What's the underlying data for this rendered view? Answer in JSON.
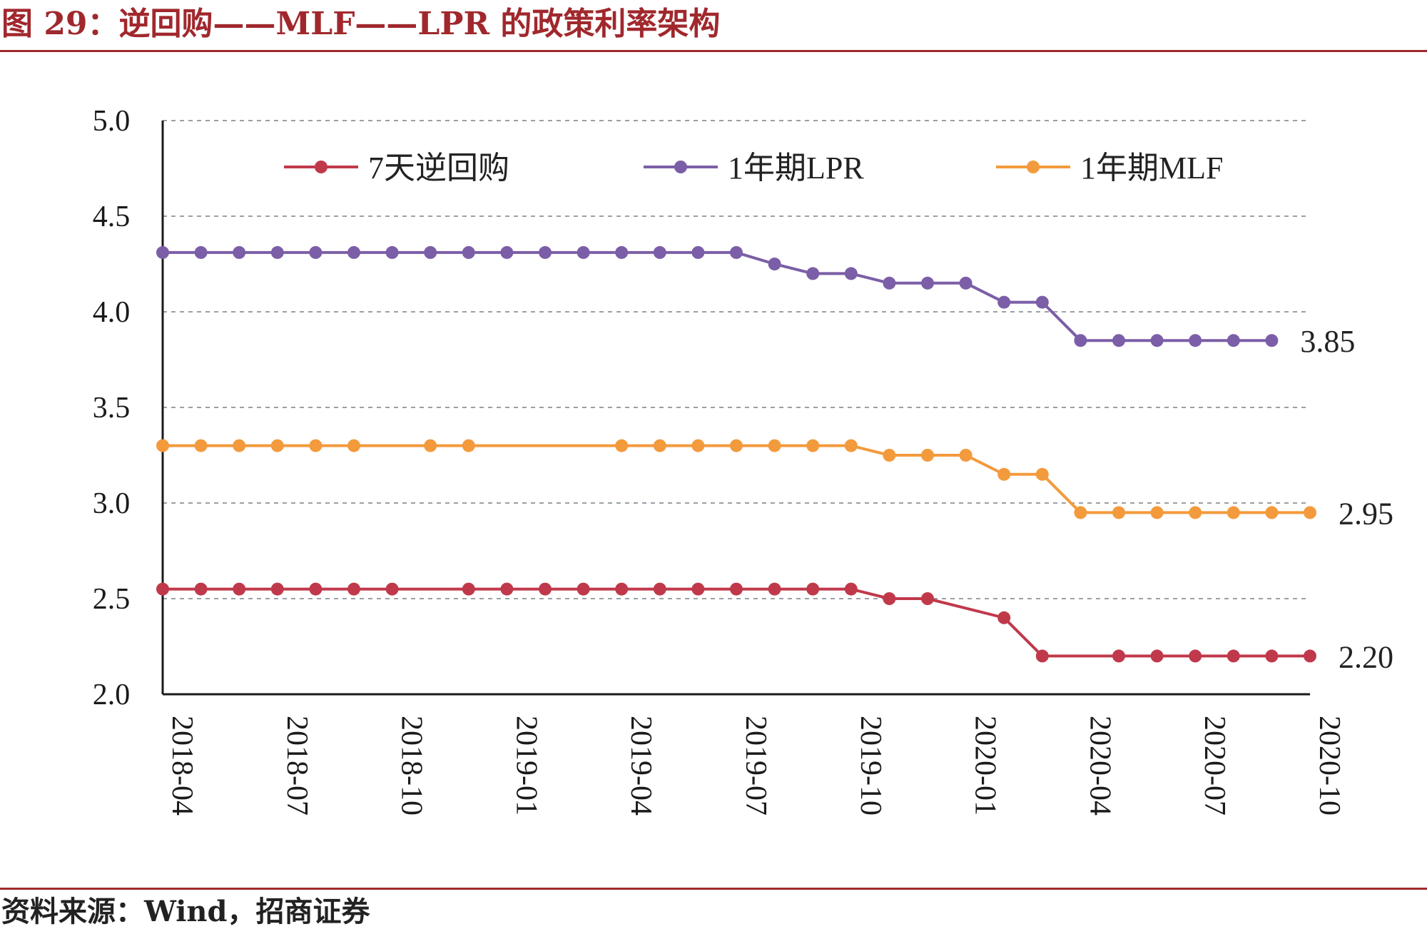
{
  "header": {
    "title": "图 29：逆回购——MLF——LPR 的政策利率架构"
  },
  "footer": {
    "source": "资料来源：Wind，招商证券"
  },
  "chart_data": {
    "type": "line",
    "title": "",
    "xlabel": "",
    "ylabel": "",
    "ylim": [
      2.0,
      5.0
    ],
    "yticks": [
      "5.0",
      "4.5",
      "4.0",
      "3.5",
      "3.0",
      "2.5",
      "2.0"
    ],
    "grid": "horizontal dashed",
    "legend_position": "top",
    "x_tick_labels": [
      "2018-04",
      "2018-07",
      "2018-10",
      "2019-01",
      "2019-04",
      "2019-07",
      "2019-10",
      "2020-01",
      "2020-04",
      "2020-07",
      "2020-10"
    ],
    "x_range": [
      "2018-04",
      "2020-10"
    ],
    "series": [
      {
        "name": "7天逆回购",
        "color": "#c0394b",
        "end_label": "2.20",
        "points": [
          [
            "2018-04",
            2.55
          ],
          [
            "2018-05",
            2.55
          ],
          [
            "2018-06",
            2.55
          ],
          [
            "2018-07",
            2.55
          ],
          [
            "2018-08",
            2.55
          ],
          [
            "2018-09",
            2.55
          ],
          [
            "2018-10",
            2.55
          ],
          [
            "2018-12",
            2.55
          ],
          [
            "2019-01",
            2.55
          ],
          [
            "2019-02",
            2.55
          ],
          [
            "2019-03",
            2.55
          ],
          [
            "2019-04",
            2.55
          ],
          [
            "2019-05",
            2.55
          ],
          [
            "2019-06",
            2.55
          ],
          [
            "2019-07",
            2.55
          ],
          [
            "2019-08",
            2.55
          ],
          [
            "2019-09",
            2.55
          ],
          [
            "2019-10",
            2.55
          ],
          [
            "2019-11",
            2.5
          ],
          [
            "2019-12",
            2.5
          ],
          [
            "2020-02",
            2.4
          ],
          [
            "2020-03",
            2.2
          ],
          [
            "2020-05",
            2.2
          ],
          [
            "2020-06",
            2.2
          ],
          [
            "2020-07",
            2.2
          ],
          [
            "2020-08",
            2.2
          ],
          [
            "2020-09",
            2.2
          ],
          [
            "2020-10",
            2.2
          ]
        ]
      },
      {
        "name": "1年期LPR",
        "color": "#7b5ea7",
        "end_label": "3.85",
        "points": [
          [
            "2018-04",
            4.31
          ],
          [
            "2018-05",
            4.31
          ],
          [
            "2018-06",
            4.31
          ],
          [
            "2018-07",
            4.31
          ],
          [
            "2018-08",
            4.31
          ],
          [
            "2018-09",
            4.31
          ],
          [
            "2018-10",
            4.31
          ],
          [
            "2018-11",
            4.31
          ],
          [
            "2018-12",
            4.31
          ],
          [
            "2019-01",
            4.31
          ],
          [
            "2019-02",
            4.31
          ],
          [
            "2019-03",
            4.31
          ],
          [
            "2019-04",
            4.31
          ],
          [
            "2019-05",
            4.31
          ],
          [
            "2019-06",
            4.31
          ],
          [
            "2019-07",
            4.31
          ],
          [
            "2019-08",
            4.25
          ],
          [
            "2019-09",
            4.2
          ],
          [
            "2019-10",
            4.2
          ],
          [
            "2019-11",
            4.15
          ],
          [
            "2019-12",
            4.15
          ],
          [
            "2020-01",
            4.15
          ],
          [
            "2020-02",
            4.05
          ],
          [
            "2020-03",
            4.05
          ],
          [
            "2020-04",
            3.85
          ],
          [
            "2020-05",
            3.85
          ],
          [
            "2020-06",
            3.85
          ],
          [
            "2020-07",
            3.85
          ],
          [
            "2020-08",
            3.85
          ],
          [
            "2020-09",
            3.85
          ]
        ]
      },
      {
        "name": "1年期MLF",
        "color": "#f39a3c",
        "end_label": "2.95",
        "points": [
          [
            "2018-04",
            3.3
          ],
          [
            "2018-05",
            3.3
          ],
          [
            "2018-06",
            3.3
          ],
          [
            "2018-07",
            3.3
          ],
          [
            "2018-08",
            3.3
          ],
          [
            "2018-09",
            3.3
          ],
          [
            "2018-11",
            3.3
          ],
          [
            "2018-12",
            3.3
          ],
          [
            "2019-04",
            3.3
          ],
          [
            "2019-05",
            3.3
          ],
          [
            "2019-06",
            3.3
          ],
          [
            "2019-07",
            3.3
          ],
          [
            "2019-08",
            3.3
          ],
          [
            "2019-09",
            3.3
          ],
          [
            "2019-10",
            3.3
          ],
          [
            "2019-11",
            3.25
          ],
          [
            "2019-12",
            3.25
          ],
          [
            "2020-01",
            3.25
          ],
          [
            "2020-02",
            3.15
          ],
          [
            "2020-03",
            3.15
          ],
          [
            "2020-04",
            2.95
          ],
          [
            "2020-05",
            2.95
          ],
          [
            "2020-06",
            2.95
          ],
          [
            "2020-07",
            2.95
          ],
          [
            "2020-08",
            2.95
          ],
          [
            "2020-09",
            2.95
          ],
          [
            "2020-10",
            2.95
          ]
        ]
      }
    ]
  }
}
